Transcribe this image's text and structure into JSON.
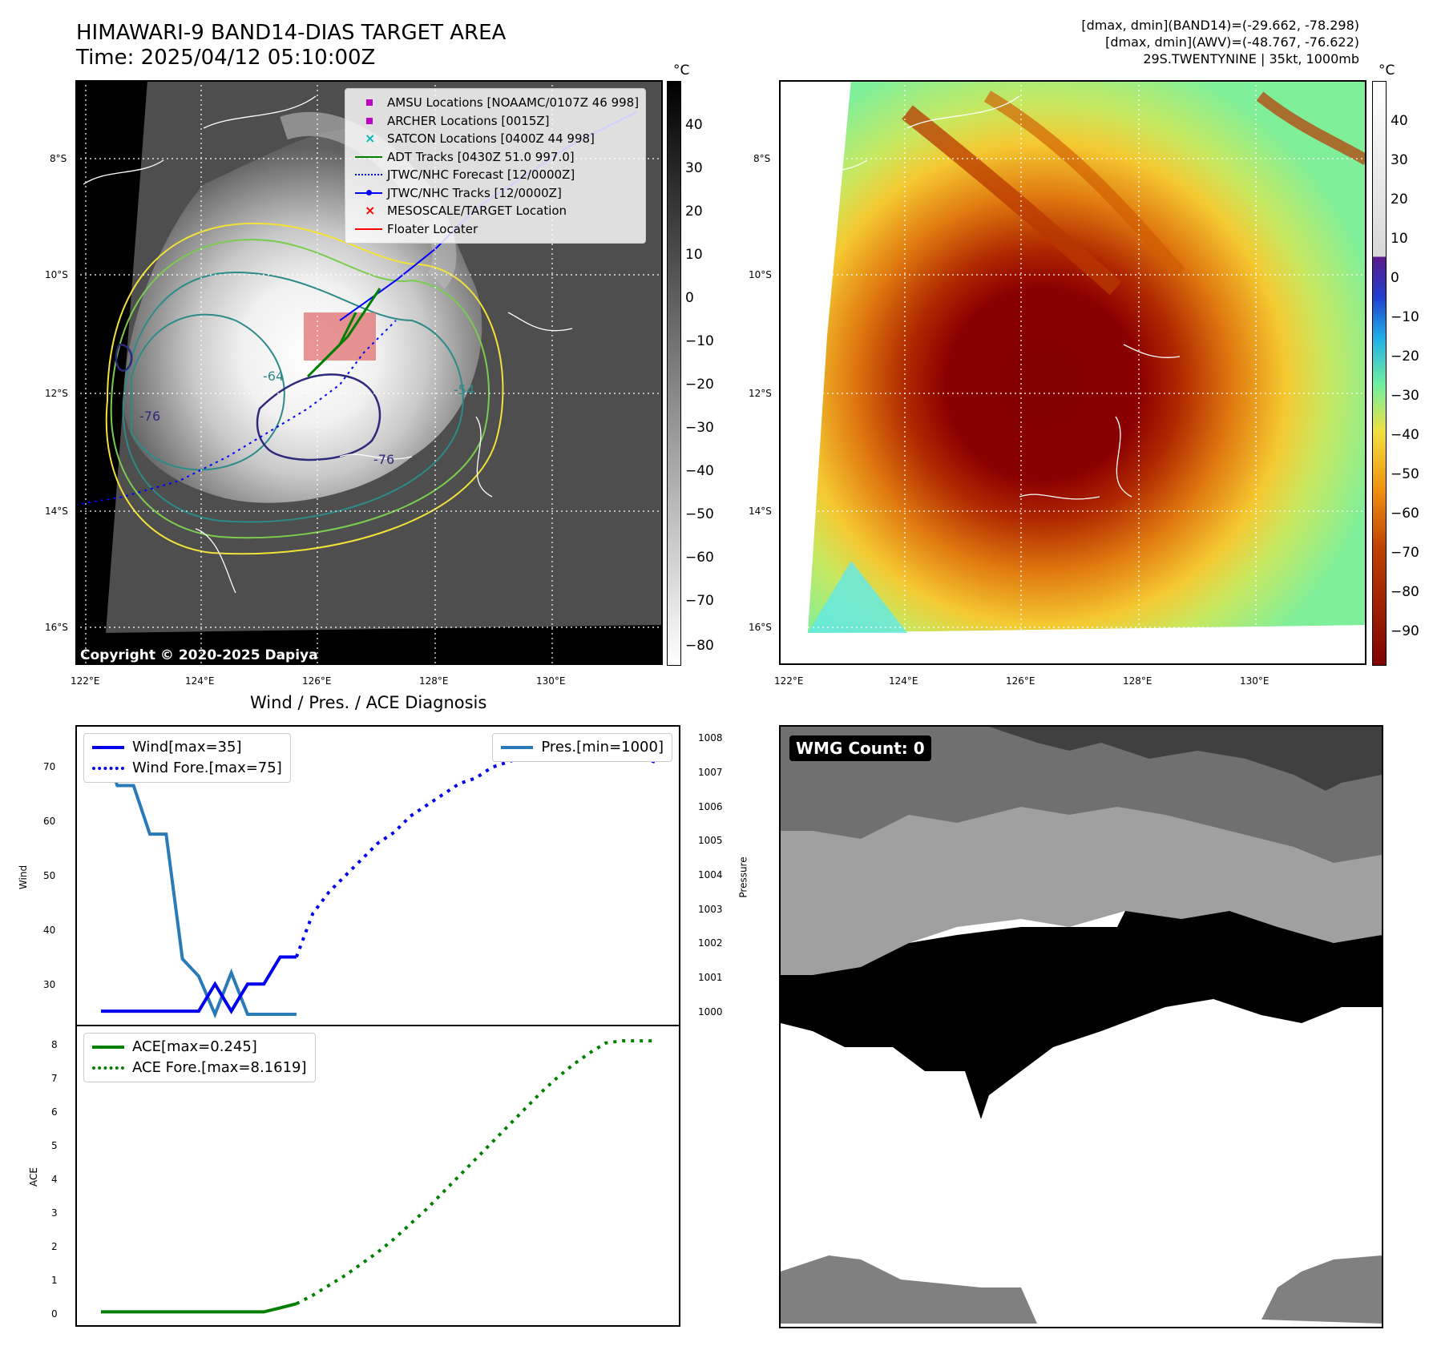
{
  "header": {
    "title": "HIMAWARI-9 BAND14-DIAS TARGET AREA",
    "time": "Time: 2025/04/12 05:10:00Z",
    "stats_band14": "[dmax, dmin](BAND14)=(-29.662, -78.298)",
    "stats_awv": "[dmax, dmin](AWV)=(-48.767, -76.622)",
    "storm": "29S.TWENTYNINE | 35kt, 1000mb"
  },
  "map": {
    "lat_labels": [
      "8°S",
      "10°S",
      "12°S",
      "14°S",
      "16°S"
    ],
    "lon_labels": [
      "122°E",
      "124°E",
      "126°E",
      "128°E",
      "130°E"
    ],
    "contour_labels": [
      "-64",
      "-76",
      "-76",
      "-64",
      "-76",
      "-76",
      "-54"
    ],
    "copyright": "Copyright © 2020-2025 Dapiya",
    "legend": [
      {
        "label": "AMSU Locations [NOAAMC/0107Z 46 998]",
        "color": "#c000c0",
        "marker": "square"
      },
      {
        "label": "ARCHER Locations [0015Z]",
        "color": "#c000c0",
        "marker": "square"
      },
      {
        "label": "SATCON Locations [0400Z 44 998]",
        "color": "#00b8b8",
        "marker": "x"
      },
      {
        "label": "ADT Tracks [0430Z 51.0 997.0]",
        "color": "#008000",
        "marker": "line"
      },
      {
        "label": "JTWC/NHC Forecast [12/0000Z]",
        "color": "#0000ff",
        "marker": "dotted"
      },
      {
        "label": "JTWC/NHC Tracks [12/0000Z]",
        "color": "#0000ff",
        "marker": "line-dot"
      },
      {
        "label": "MESOSCALE/TARGET Location",
        "color": "#ff0000",
        "marker": "x"
      },
      {
        "label": "Floater Locater",
        "color": "#ff0000",
        "marker": "line"
      }
    ]
  },
  "colorbar_gray": {
    "unit": "°C",
    "ticks": [
      "40",
      "30",
      "20",
      "10",
      "0",
      "−10",
      "−20",
      "−30",
      "−40",
      "−50",
      "−60",
      "−70",
      "−80"
    ]
  },
  "colorbar_color": {
    "unit": "°C",
    "ticks": [
      "40",
      "30",
      "20",
      "10",
      "0",
      "−10",
      "−20",
      "−30",
      "−40",
      "−50",
      "−60",
      "−70",
      "−80",
      "−90"
    ]
  },
  "diag": {
    "title": "Wind / Pres. / ACE Diagnosis",
    "wind_label": "Wind",
    "pressure_label": "Pressure",
    "ace_label": "ACE",
    "wind_ticks": [
      "70",
      "60",
      "50",
      "40",
      "30"
    ],
    "pressure_ticks": [
      "1008",
      "1007",
      "1006",
      "1005",
      "1004",
      "1003",
      "1002",
      "1001",
      "1000"
    ],
    "ace_ticks": [
      "8",
      "7",
      "6",
      "5",
      "4",
      "3",
      "2",
      "1",
      "0"
    ],
    "legend_wind": "Wind[max=35]",
    "legend_wind_fore": "Wind Fore.[max=75]",
    "legend_pres": "Pres.[min=1000]",
    "legend_ace": "ACE[max=0.245]",
    "legend_ace_fore": "ACE Fore.[max=8.1619]"
  },
  "wmg": {
    "label": "WMG Count: 0"
  },
  "chart_data": [
    {
      "type": "line",
      "title": "Wind / Pres. / ACE Diagnosis",
      "ylabel": "Wind",
      "ylim": [
        22.5,
        77.5
      ],
      "series": [
        {
          "name": "Wind[max=35]",
          "x": [
            0,
            1,
            2,
            3,
            4,
            5,
            6,
            7,
            8,
            9,
            10,
            11,
            12
          ],
          "values": [
            25,
            25,
            25,
            25,
            25,
            25,
            25,
            30,
            25,
            30,
            30,
            35,
            35
          ]
        },
        {
          "name": "Wind Fore.[max=75]",
          "x": [
            12,
            13,
            14,
            15,
            16,
            17,
            18,
            19,
            20,
            21,
            22,
            23,
            24,
            25,
            26,
            27,
            28,
            29,
            30,
            31,
            32,
            33,
            34
          ],
          "values": [
            35,
            43,
            47,
            50,
            53,
            56,
            58,
            61,
            63,
            65,
            67,
            68,
            70,
            71,
            72,
            74,
            74,
            75,
            75,
            74,
            73,
            72,
            71
          ]
        }
      ]
    },
    {
      "type": "line",
      "ylabel": "Pressure",
      "ylim": [
        999.7,
        1008.3
      ],
      "series": [
        {
          "name": "Pres.[min=1000]",
          "x": [
            0,
            1,
            2,
            3,
            4,
            5,
            6,
            7,
            8,
            9,
            10,
            11,
            12
          ],
          "values": [
            1008,
            1006.6,
            1006.6,
            1005.2,
            1005.2,
            1001.6,
            1001.1,
            1000,
            1001.2,
            1000,
            1000,
            1000,
            1000
          ]
        }
      ]
    },
    {
      "type": "line",
      "ylabel": "ACE",
      "ylim": [
        -0.4,
        8.6
      ],
      "series": [
        {
          "name": "ACE[max=0.245]",
          "x": [
            0,
            1,
            2,
            3,
            4,
            5,
            6,
            7,
            8,
            9,
            10,
            11,
            12
          ],
          "values": [
            0,
            0,
            0,
            0,
            0,
            0,
            0,
            0,
            0,
            0,
            0,
            0.12,
            0.245
          ]
        },
        {
          "name": "ACE Fore.[max=8.1619]",
          "x": [
            12,
            13,
            14,
            15,
            16,
            17,
            18,
            19,
            20,
            21,
            22,
            23,
            24,
            25,
            26,
            27,
            28,
            29,
            30,
            31,
            32,
            33,
            34
          ],
          "values": [
            0.245,
            0.5,
            0.8,
            1.1,
            1.45,
            1.8,
            2.2,
            2.65,
            3.1,
            3.6,
            4.1,
            4.6,
            5.1,
            5.6,
            6.1,
            6.6,
            7.05,
            7.45,
            7.8,
            8.1,
            8.1619,
            8.1619,
            8.1619
          ]
        }
      ]
    }
  ]
}
